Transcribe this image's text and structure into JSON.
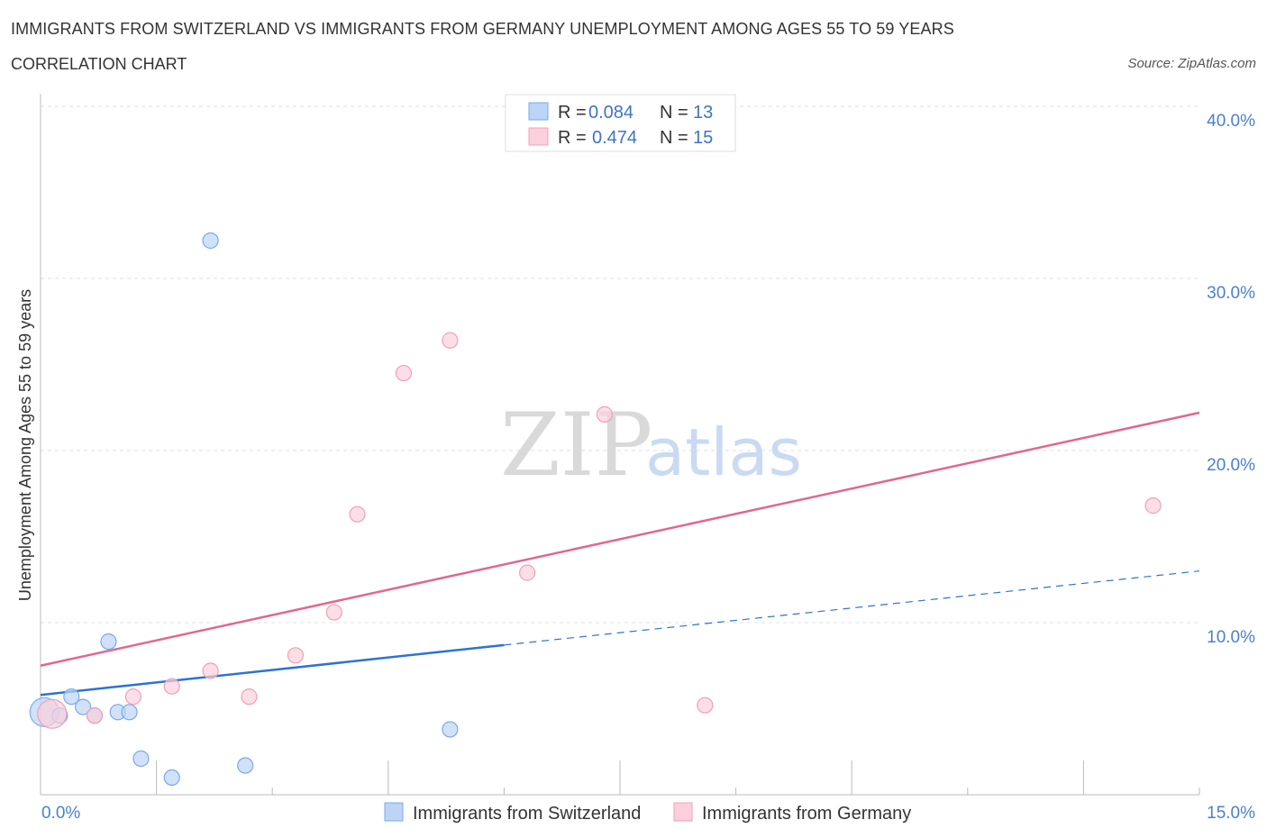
{
  "chart_data": {
    "type": "scatter",
    "title": "IMMIGRANTS FROM SWITZERLAND VS IMMIGRANTS FROM GERMANY UNEMPLOYMENT AMONG AGES 55 TO 59 YEARS",
    "subtitle": "CORRELATION CHART",
    "source": "Source: ZipAtlas.com",
    "ylabel": "Unemployment Among Ages 55 to 59 years",
    "xlim": [
      0,
      15
    ],
    "ylim": [
      0,
      40
    ],
    "x_tick_labels": [
      "0.0%",
      "15.0%"
    ],
    "y_ticks": [
      10,
      20,
      30,
      40
    ],
    "y_tick_labels": [
      "10.0%",
      "20.0%",
      "30.0%",
      "40.0%"
    ],
    "watermark": {
      "zip": "ZIP",
      "atlas": "atlas"
    },
    "legend_r_label": "R =",
    "legend_n_label": "N =",
    "series": [
      {
        "name": "Immigrants from Switzerland",
        "color": "#7aaae8",
        "fill": "#bcd4f5",
        "line_color": "#2d73d2",
        "R": "0.084",
        "N": "13",
        "points": [
          {
            "x": 0.05,
            "y": 4.8,
            "big": true
          },
          {
            "x": 0.25,
            "y": 4.6
          },
          {
            "x": 0.4,
            "y": 5.7
          },
          {
            "x": 0.55,
            "y": 5.1
          },
          {
            "x": 0.7,
            "y": 4.6
          },
          {
            "x": 0.88,
            "y": 8.9
          },
          {
            "x": 1.0,
            "y": 4.8
          },
          {
            "x": 1.15,
            "y": 4.8
          },
          {
            "x": 1.3,
            "y": 2.1
          },
          {
            "x": 1.7,
            "y": 1.0
          },
          {
            "x": 2.2,
            "y": 32.2
          },
          {
            "x": 2.65,
            "y": 1.7
          },
          {
            "x": 5.3,
            "y": 3.8
          }
        ],
        "trend": {
          "x0": 0,
          "y0": 5.8,
          "x1": 6.0,
          "y1": 8.7,
          "dash_to_x": 15,
          "dash_to_y": 13.0
        }
      },
      {
        "name": "Immigrants from Germany",
        "color": "#f0a0b8",
        "fill": "#fbd0dc",
        "line_color": "#e06890",
        "R": "0.474",
        "N": "15",
        "points": [
          {
            "x": 0.15,
            "y": 4.7,
            "big": true
          },
          {
            "x": 0.7,
            "y": 4.6
          },
          {
            "x": 1.2,
            "y": 5.7
          },
          {
            "x": 1.7,
            "y": 6.3
          },
          {
            "x": 2.2,
            "y": 7.2
          },
          {
            "x": 2.7,
            "y": 5.7
          },
          {
            "x": 3.3,
            "y": 8.1
          },
          {
            "x": 3.8,
            "y": 10.6
          },
          {
            "x": 4.1,
            "y": 16.3
          },
          {
            "x": 4.7,
            "y": 24.5
          },
          {
            "x": 5.3,
            "y": 26.4
          },
          {
            "x": 6.3,
            "y": 12.9
          },
          {
            "x": 7.3,
            "y": 22.1
          },
          {
            "x": 8.6,
            "y": 5.2
          },
          {
            "x": 14.4,
            "y": 16.8
          }
        ],
        "trend": {
          "x0": 0,
          "y0": 7.5,
          "x1": 15,
          "y1": 22.2
        }
      }
    ]
  }
}
